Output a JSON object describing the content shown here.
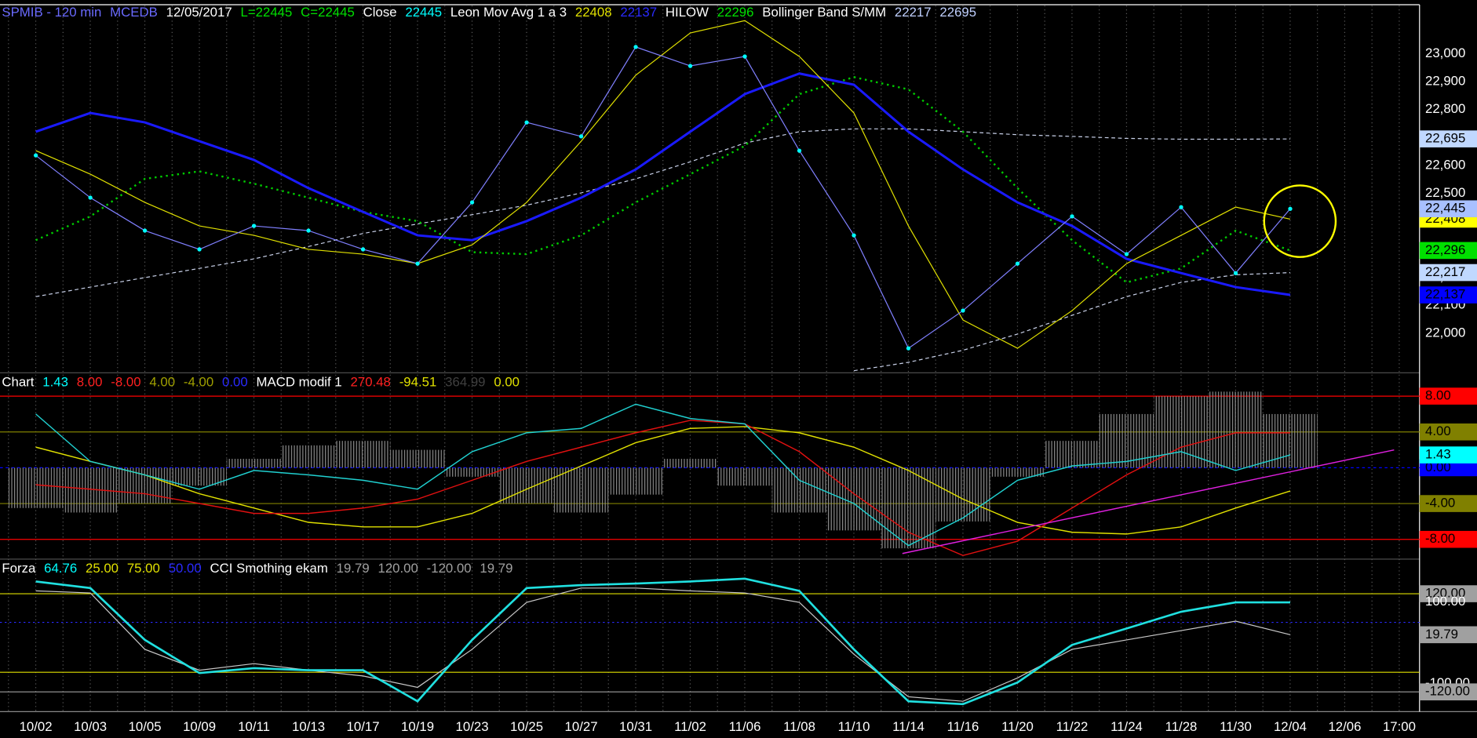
{
  "chart_data": [
    {
      "type": "line",
      "header": [
        {
          "text": "SPMIB - 120 min",
          "color": "#6a6aff"
        },
        {
          "text": "MCEDB",
          "color": "#6a6aff"
        },
        {
          "text": "12/05/2017",
          "color": "#ffffff"
        },
        {
          "text": "L=22445",
          "color": "#00e000"
        },
        {
          "text": "C=22445",
          "color": "#00e000"
        },
        {
          "text": "Close",
          "color": "#ffffff"
        },
        {
          "text": "22445",
          "color": "#00ffff"
        },
        {
          "text": "Leon Mov Avg 1 a 3",
          "color": "#ffffff"
        },
        {
          "text": "22408",
          "color": "#e0e000"
        },
        {
          "text": "22137",
          "color": "#2a2aff"
        },
        {
          "text": "HILOW",
          "color": "#ffffff"
        },
        {
          "text": "22296",
          "color": "#00e000"
        },
        {
          "text": "Bollinger Band S/MM",
          "color": "#ffffff"
        },
        {
          "text": "22217",
          "color": "#c0d0ff"
        },
        {
          "text": "22695",
          "color": "#c0d0ff"
        }
      ],
      "categories": [
        "10/02",
        "10/03",
        "10/05",
        "10/09",
        "10/11",
        "10/13",
        "10/17",
        "10/19",
        "10/23",
        "10/25",
        "10/27",
        "10/31",
        "11/02",
        "11/06",
        "11/08",
        "11/10",
        "11/14",
        "11/16",
        "11/20",
        "11/22",
        "11/24",
        "11/28",
        "11/30",
        "12/04",
        "12/06",
        "17:00"
      ],
      "ylim": [
        21862,
        23175
      ],
      "yticks": [
        {
          "value": 22000,
          "label": "22,000"
        },
        {
          "value": 22100,
          "label": "22,100"
        },
        {
          "value": 22200,
          "label": "22,200"
        },
        {
          "value": 22300,
          "label": "22,300"
        },
        {
          "value": 22400,
          "label": "22,400"
        },
        {
          "value": 22500,
          "label": "22,500"
        },
        {
          "value": 22600,
          "label": "22,600"
        },
        {
          "value": 22700,
          "label": "22,700"
        },
        {
          "value": 22800,
          "label": "22,800"
        },
        {
          "value": 22900,
          "label": "22,900"
        },
        {
          "value": 23000,
          "label": "23,000"
        }
      ],
      "grid": false,
      "series": [
        {
          "style": "dashed",
          "color": "#c8d0e8",
          "box_color": "#c0d8ff",
          "values": [
            22131,
            22165,
            22199,
            22232,
            22266,
            22310,
            22357,
            22391,
            22424,
            22458,
            22502,
            22552,
            22613,
            22680,
            22721,
            22731,
            22731,
            22721,
            22710,
            22704,
            22697,
            22694,
            22694,
            22695,
            null,
            null
          ],
          "value_labels": [
            null,
            null,
            null,
            null,
            null,
            null,
            null,
            null,
            null,
            null,
            null,
            null,
            null,
            null,
            null,
            null,
            null,
            null,
            null,
            null,
            null,
            null,
            null,
            "22,695",
            null,
            null
          ]
        },
        {
          "style": "dashed",
          "color": "#c8d0e8",
          "box_color": "#c0d8ff",
          "values": [
            null,
            null,
            null,
            null,
            null,
            null,
            null,
            null,
            null,
            null,
            null,
            null,
            null,
            null,
            null,
            21866,
            21896,
            21939,
            21997,
            22064,
            22131,
            22182,
            22209,
            22217,
            null,
            null
          ],
          "value_labels": [
            null,
            null,
            null,
            null,
            null,
            null,
            null,
            null,
            null,
            null,
            null,
            null,
            null,
            null,
            null,
            null,
            null,
            null,
            null,
            null,
            null,
            null,
            null,
            "22,217",
            null,
            null
          ]
        },
        {
          "style": "dotted",
          "color": "#00cc00",
          "box_color": "#00e000",
          "values": [
            22333,
            22418,
            22552,
            22579,
            22535,
            22485,
            22434,
            22401,
            22290,
            22283,
            22350,
            22468,
            22569,
            22670,
            22855,
            22916,
            22872,
            22721,
            22519,
            22333,
            22182,
            22232,
            22367,
            22296,
            null,
            null
          ],
          "value_labels": [
            null,
            null,
            null,
            null,
            null,
            null,
            null,
            null,
            null,
            null,
            null,
            null,
            null,
            null,
            null,
            null,
            null,
            null,
            null,
            null,
            null,
            null,
            null,
            "22,296",
            null,
            null
          ]
        },
        {
          "style": "line",
          "color": "#1a1aff",
          "width": 2.5,
          "box_color": "#0000ff",
          "values": [
            22721,
            22788,
            22754,
            22687,
            22620,
            22519,
            22434,
            22350,
            22333,
            22401,
            22485,
            22586,
            22721,
            22855,
            22929,
            22889,
            22721,
            22586,
            22468,
            22384,
            22266,
            22215,
            22165,
            22137,
            null,
            null
          ],
          "value_labels": [
            null,
            null,
            null,
            null,
            null,
            null,
            null,
            null,
            null,
            null,
            null,
            null,
            null,
            null,
            null,
            null,
            null,
            null,
            null,
            null,
            null,
            null,
            null,
            "22,137",
            null,
            null
          ]
        },
        {
          "style": "line",
          "color": "#e0e000",
          "width": 1,
          "box_color": "#ffff00",
          "values": [
            22653,
            22569,
            22468,
            22384,
            22350,
            22300,
            22283,
            22249,
            22316,
            22468,
            22687,
            22923,
            23074,
            23118,
            22990,
            22788,
            22384,
            22047,
            21946,
            22081,
            22249,
            22350,
            22451,
            22408,
            null,
            null
          ],
          "value_labels": [
            null,
            null,
            null,
            null,
            null,
            null,
            null,
            null,
            null,
            null,
            null,
            null,
            null,
            null,
            null,
            null,
            null,
            null,
            null,
            null,
            null,
            null,
            null,
            "22,408",
            null,
            null
          ]
        },
        {
          "style": "dots",
          "color": "#8080ff",
          "dot_color": "#00ffff",
          "width": 1,
          "box_color": "#a8c0ff",
          "values": [
            22636,
            22485,
            22367,
            22300,
            22384,
            22367,
            22300,
            22249,
            22468,
            22754,
            22704,
            23024,
            22956,
            22990,
            22653,
            22350,
            21946,
            22081,
            22249,
            22418,
            22283,
            22451,
            22215,
            22445,
            null,
            null
          ],
          "value_labels": [
            null,
            null,
            null,
            null,
            null,
            null,
            null,
            null,
            null,
            null,
            null,
            null,
            null,
            null,
            null,
            null,
            null,
            null,
            null,
            null,
            null,
            null,
            null,
            "22,445",
            null,
            null
          ]
        }
      ]
    },
    {
      "type": "line",
      "header": [
        {
          "text": "Chart",
          "color": "#ffffff"
        },
        {
          "text": "1.43",
          "color": "#00ffff"
        },
        {
          "text": "8.00",
          "color": "#ff2020"
        },
        {
          "text": "-8.00",
          "color": "#ff2020"
        },
        {
          "text": "4.00",
          "color": "#a0a000"
        },
        {
          "text": "-4.00",
          "color": "#a0a000"
        },
        {
          "text": "0.00",
          "color": "#2a2aff"
        },
        {
          "text": "MACD modif 1",
          "color": "#ffffff"
        },
        {
          "text": "270.48",
          "color": "#ff2020"
        },
        {
          "text": "-94.51",
          "color": "#e0e000"
        },
        {
          "text": "364.99",
          "color": "#404040"
        },
        {
          "text": "0.00",
          "color": "#e0e000"
        }
      ],
      "ylim": [
        -10,
        10.4
      ],
      "yticks": [
        {
          "value": 8,
          "label": "8.00"
        },
        {
          "value": 4,
          "label": "4.00"
        },
        {
          "value": 0,
          "label": "0.00"
        },
        {
          "value": -4,
          "label": "-4.00"
        },
        {
          "value": -8,
          "label": "-8.00"
        }
      ],
      "tick_colors": [
        "#ff0000",
        "#808000",
        "#0000ff",
        "#808000",
        "#ff0000"
      ],
      "grid": true,
      "series": [
        {
          "style": "bar",
          "color": "#9a9a9a",
          "values": [
            -4.5,
            -5,
            -4,
            -2,
            1,
            2.5,
            3,
            2,
            -1,
            -4,
            -5,
            -3,
            1,
            -2,
            -5,
            -7,
            -9,
            -6,
            -1,
            3,
            6,
            8,
            8.5,
            6,
            null,
            null
          ]
        },
        {
          "style": "line",
          "color": "#e0e000",
          "width": 1.2,
          "values": [
            2.3,
            0.7,
            -0.8,
            -2.9,
            -4.5,
            -6.1,
            -6.6,
            -6.6,
            -5.1,
            -2.4,
            0.2,
            2.8,
            4.4,
            4.6,
            3.9,
            2.3,
            -0.3,
            -3.5,
            -6.1,
            -7.2,
            -7.4,
            -6.6,
            -4.5,
            -2.6,
            null,
            null
          ]
        },
        {
          "style": "line",
          "color": "#e01010",
          "width": 1.2,
          "values": [
            -1.9,
            -2.4,
            -2.9,
            -4,
            -5.1,
            -5.1,
            -4.5,
            -3.5,
            -1.4,
            0.7,
            2.3,
            3.9,
            5.3,
            4.9,
            1.8,
            -2.9,
            -7.2,
            -9.8,
            -8.2,
            -4.5,
            -0.8,
            2.3,
            3.9,
            3.9,
            null,
            null
          ]
        },
        {
          "style": "line",
          "color": "#20d0d0",
          "width": 1.2,
          "box_color": "#00ffff",
          "values": [
            6,
            0.7,
            -0.8,
            -2.4,
            -0.3,
            -0.8,
            -1.4,
            -2.4,
            1.8,
            3.9,
            4.4,
            7.1,
            5.5,
            4.9,
            -1.4,
            -4,
            -8.7,
            -5.6,
            -1.4,
            0.2,
            0.7,
            1.8,
            -0.3,
            1.43,
            null,
            null
          ],
          "value_labels": [
            null,
            null,
            null,
            null,
            null,
            null,
            null,
            null,
            null,
            null,
            null,
            null,
            null,
            null,
            null,
            null,
            null,
            null,
            null,
            null,
            null,
            null,
            null,
            "1.43",
            null,
            null
          ]
        }
      ]
    },
    {
      "type": "line",
      "header": [
        {
          "text": "Forza",
          "color": "#ffffff"
        },
        {
          "text": "64.76",
          "color": "#00ffff"
        },
        {
          "text": "25.00",
          "color": "#e0e000"
        },
        {
          "text": "75.00",
          "color": "#e0e000"
        },
        {
          "text": "50.00",
          "color": "#2a2aff"
        },
        {
          "text": "CCI Smothing ekam",
          "color": "#ffffff"
        },
        {
          "text": "19.79",
          "color": "#a0a0a0"
        },
        {
          "text": "120.00",
          "color": "#a0a0a0"
        },
        {
          "text": "-120.00",
          "color": "#a0a0a0"
        },
        {
          "text": "19.79",
          "color": "#a0a0a0"
        }
      ],
      "ylim": [
        -166,
        200
      ],
      "yticks": [
        {
          "value": 120,
          "label": "120.00"
        },
        {
          "value": 100,
          "label": "100.00"
        },
        {
          "value": -100,
          "label": "-100.00"
        },
        {
          "value": -120,
          "label": "-120.00"
        }
      ],
      "tick_colors": [
        "#a0a0a0",
        null,
        null,
        "#a0a0a0"
      ],
      "grid": false,
      "levels": [
        {
          "value": 120,
          "color": "#e0e000"
        },
        {
          "value": 50,
          "color": "#2a2aff"
        },
        {
          "value": -72,
          "color": "#e0e000"
        },
        {
          "value": -120,
          "color": "#a0a0a0"
        }
      ],
      "series": [
        {
          "style": "line",
          "color": "#c8c8c8",
          "width": 1,
          "box_color": "#a0a0a0",
          "values": [
            127,
            122,
            -16,
            -67,
            -51,
            -67,
            -81,
            -109,
            -16,
            99,
            134,
            134,
            127,
            122,
            99,
            -28,
            -132,
            -143,
            -86,
            -16,
            7,
            30,
            53,
            19.79,
            null,
            null
          ],
          "value_labels": [
            null,
            null,
            null,
            null,
            null,
            null,
            null,
            null,
            null,
            null,
            null,
            null,
            null,
            null,
            null,
            null,
            null,
            null,
            null,
            null,
            null,
            null,
            null,
            "19.79",
            null,
            null
          ]
        },
        {
          "style": "line",
          "color": "#20e0e0",
          "width": 2.2,
          "values": [
            150,
            134,
            7,
            -74,
            -62,
            -67,
            -67,
            -143,
            7,
            134,
            141,
            145,
            150,
            157,
            127,
            -16,
            -143,
            -150,
            -97,
            -5,
            35,
            76,
            99,
            99,
            null,
            null
          ]
        }
      ]
    }
  ]
}
